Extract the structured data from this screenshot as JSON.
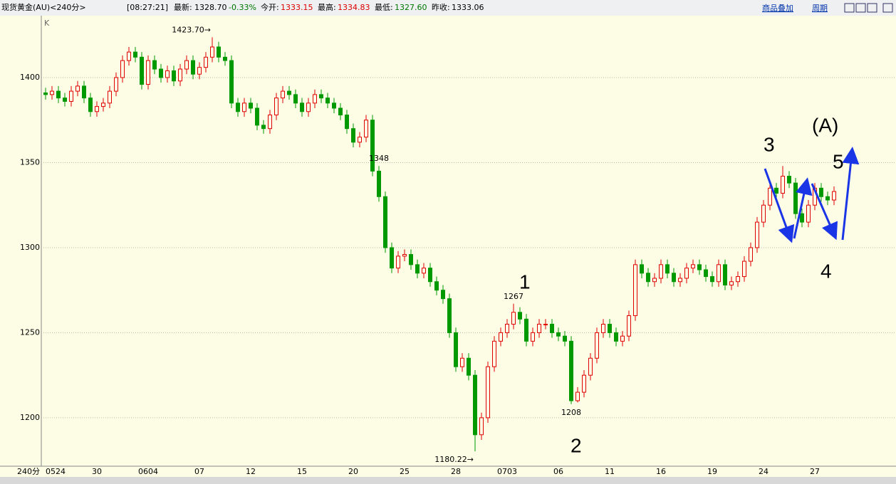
{
  "header": {
    "symbol": "现货黄金(AU)<240分>",
    "time": "[08:27:21]",
    "last_label": "最新:",
    "last": "1328.70",
    "change": "-0.33%",
    "open_label": "今开:",
    "open": "1333.15",
    "high_label": "最高:",
    "high": "1334.83",
    "low_label": "最低:",
    "low": "1327.60",
    "prev_label": "昨收:",
    "prev": "1333.06",
    "overlay": "商品叠加",
    "period": "周期"
  },
  "chart_data": {
    "type": "candlestick",
    "indicator": "K",
    "period_label": "240分",
    "up_color": "#e00000",
    "down_color": "#009900",
    "grid": true,
    "ylim": [
      1171.5,
      1436.4
    ],
    "yticks": [
      1200,
      1250,
      1300,
      1350,
      1400
    ],
    "categories": [
      "0524",
      null,
      null,
      null,
      null,
      null,
      null,
      null,
      "30",
      null,
      null,
      null,
      null,
      null,
      null,
      null,
      "0604",
      null,
      null,
      null,
      null,
      null,
      null,
      null,
      "07",
      null,
      null,
      null,
      null,
      null,
      null,
      null,
      "12",
      null,
      null,
      null,
      null,
      null,
      null,
      null,
      "15",
      null,
      null,
      null,
      null,
      null,
      null,
      null,
      "20",
      null,
      null,
      null,
      null,
      null,
      null,
      null,
      "25",
      null,
      null,
      null,
      null,
      null,
      null,
      null,
      "28",
      null,
      null,
      null,
      null,
      null,
      null,
      null,
      "0703",
      null,
      null,
      null,
      null,
      null,
      null,
      null,
      "06",
      null,
      null,
      null,
      null,
      null,
      null,
      null,
      "11",
      null,
      null,
      null,
      null,
      null,
      null,
      null,
      "16",
      null,
      null,
      null,
      null,
      null,
      null,
      null,
      "19",
      null,
      null,
      null,
      null,
      null,
      null,
      null,
      "24",
      null,
      null,
      null,
      null,
      null,
      null,
      null,
      "27",
      null,
      null,
      null
    ],
    "open": [
      1391,
      1390,
      1392,
      1388,
      1386,
      1392,
      1395,
      1388,
      1380,
      1383,
      1385,
      1392,
      1400,
      1410,
      1415,
      1412,
      1396,
      1410,
      1405,
      1400,
      1404,
      1398,
      1405,
      1410,
      1402,
      1406,
      1412,
      1418,
      1412,
      1410,
      1385,
      1380,
      1385,
      1382,
      1372,
      1370,
      1378,
      1388,
      1392,
      1390,
      1385,
      1380,
      1385,
      1390,
      1388,
      1385,
      1382,
      1378,
      1370,
      1362,
      1365,
      1375,
      1345,
      1330,
      1300,
      1288,
      1295,
      1296,
      1290,
      1285,
      1288,
      1280,
      1275,
      1270,
      1250,
      1230,
      1235,
      1225,
      1190,
      1200,
      1230,
      1245,
      1250,
      1255,
      1262,
      1258,
      1245,
      1250,
      1255,
      1255,
      1250,
      1248,
      1245,
      1210,
      1215,
      1225,
      1235,
      1250,
      1255,
      1250,
      1245,
      1248,
      1260,
      1290,
      1285,
      1280,
      1282,
      1290,
      1285,
      1280,
      1282,
      1288,
      1290,
      1287,
      1283,
      1280,
      1290,
      1278,
      1280,
      1283,
      1292,
      1300,
      1315,
      1325,
      1335,
      1332,
      1342,
      1338,
      1320,
      1315,
      1325,
      1335,
      1330,
      1328
    ],
    "high": [
      1394,
      1395,
      1395,
      1391,
      1395,
      1398,
      1398,
      1391,
      1386,
      1388,
      1395,
      1403,
      1413,
      1418,
      1418,
      1415,
      1413,
      1413,
      1408,
      1407,
      1407,
      1408,
      1413,
      1413,
      1409,
      1415,
      1423.7,
      1421,
      1415,
      1413,
      1388,
      1388,
      1388,
      1385,
      1375,
      1381,
      1391,
      1395,
      1395,
      1393,
      1388,
      1388,
      1393,
      1393,
      1391,
      1388,
      1385,
      1381,
      1373,
      1368,
      1378,
      1378,
      1348,
      1333,
      1303,
      1298,
      1299,
      1299,
      1293,
      1291,
      1291,
      1283,
      1278,
      1273,
      1253,
      1238,
      1238,
      1228,
      1203,
      1233,
      1248,
      1253,
      1258,
      1267,
      1265,
      1261,
      1253,
      1258,
      1258,
      1258,
      1253,
      1251,
      1248,
      1218,
      1228,
      1238,
      1253,
      1258,
      1258,
      1253,
      1251,
      1263,
      1293,
      1293,
      1288,
      1285,
      1293,
      1293,
      1288,
      1285,
      1291,
      1293,
      1293,
      1290,
      1286,
      1293,
      1293,
      1283,
      1286,
      1295,
      1303,
      1318,
      1328,
      1338,
      1338,
      1348,
      1345,
      1341,
      1323,
      1328,
      1338,
      1338,
      1333,
      1336
    ],
    "low": [
      1387,
      1387,
      1385,
      1383,
      1383,
      1389,
      1385,
      1377,
      1377,
      1380,
      1382,
      1389,
      1397,
      1407,
      1409,
      1393,
      1393,
      1402,
      1397,
      1397,
      1395,
      1395,
      1402,
      1399,
      1399,
      1403,
      1409,
      1409,
      1407,
      1382,
      1377,
      1377,
      1379,
      1369,
      1367,
      1367,
      1375,
      1385,
      1387,
      1382,
      1377,
      1377,
      1382,
      1385,
      1382,
      1379,
      1375,
      1367,
      1359,
      1359,
      1362,
      1342,
      1327,
      1297,
      1285,
      1285,
      1292,
      1287,
      1282,
      1282,
      1277,
      1272,
      1267,
      1247,
      1227,
      1227,
      1222,
      1180.22,
      1187,
      1197,
      1227,
      1242,
      1247,
      1252,
      1255,
      1242,
      1242,
      1247,
      1252,
      1247,
      1245,
      1242,
      1208,
      1209,
      1212,
      1222,
      1232,
      1247,
      1247,
      1242,
      1242,
      1245,
      1257,
      1282,
      1277,
      1277,
      1279,
      1282,
      1277,
      1277,
      1279,
      1285,
      1284,
      1280,
      1277,
      1277,
      1275,
      1275,
      1277,
      1280,
      1289,
      1297,
      1312,
      1322,
      1329,
      1329,
      1335,
      1317,
      1312,
      1312,
      1322,
      1327,
      1325,
      1325
    ],
    "close": [
      1390,
      1392,
      1388,
      1386,
      1392,
      1395,
      1388,
      1380,
      1383,
      1385,
      1392,
      1400,
      1410,
      1415,
      1412,
      1396,
      1410,
      1405,
      1400,
      1404,
      1398,
      1405,
      1410,
      1402,
      1406,
      1412,
      1418,
      1412,
      1410,
      1385,
      1380,
      1385,
      1382,
      1372,
      1370,
      1378,
      1388,
      1392,
      1390,
      1385,
      1380,
      1385,
      1390,
      1388,
      1385,
      1382,
      1378,
      1370,
      1362,
      1365,
      1375,
      1345,
      1330,
      1300,
      1288,
      1295,
      1296,
      1290,
      1285,
      1288,
      1280,
      1275,
      1270,
      1250,
      1230,
      1235,
      1225,
      1190,
      1200,
      1230,
      1245,
      1250,
      1255,
      1262,
      1258,
      1245,
      1250,
      1255,
      1255,
      1250,
      1248,
      1245,
      1210,
      1215,
      1225,
      1235,
      1250,
      1255,
      1250,
      1245,
      1248,
      1260,
      1290,
      1285,
      1280,
      1282,
      1290,
      1285,
      1280,
      1282,
      1288,
      1290,
      1287,
      1283,
      1280,
      1290,
      1278,
      1280,
      1283,
      1292,
      1300,
      1315,
      1325,
      1335,
      1332,
      1342,
      1338,
      1320,
      1315,
      1325,
      1335,
      1330,
      1328,
      1333
    ],
    "extremes": [
      {
        "value": 1423.7,
        "label": "1423.70→"
      },
      {
        "value": 1180.22,
        "label": "1180.22→"
      },
      {
        "value": 1267,
        "label": "1267"
      },
      {
        "value": 1208,
        "label": "1208"
      },
      {
        "value": 1348,
        "label": "1348"
      }
    ],
    "wave_labels": [
      "1",
      "2",
      "3",
      "4",
      "5",
      "(A)"
    ]
  }
}
